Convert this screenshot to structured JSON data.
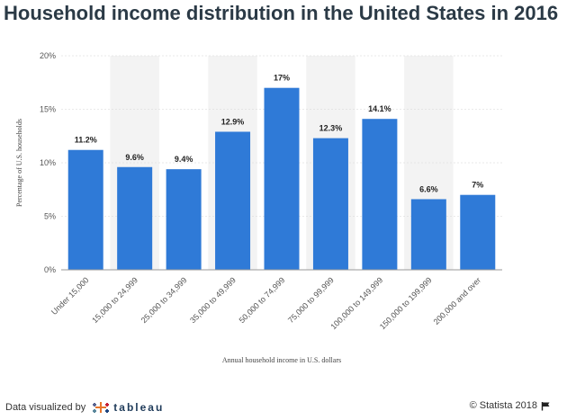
{
  "chart_data": {
    "type": "bar",
    "title": "Household income distribution in the United States in 2016",
    "xlabel": "Annual household income in U.S. dollars",
    "ylabel": "Percentage of U.S. households",
    "categories": [
      "Under 15,000",
      "15,000 to 24,999",
      "25,000 to 34,999",
      "35,000 to 49,999",
      "50,000 to 74,999",
      "75,000 to 99,999",
      "100,000 to 149,999",
      "150,000 to 199,999",
      "200,000 and over"
    ],
    "values": [
      11.2,
      9.6,
      9.4,
      12.9,
      17,
      12.3,
      14.1,
      6.6,
      7
    ],
    "data_labels": [
      "11.2%",
      "9.6%",
      "9.4%",
      "12.9%",
      "17%",
      "12.3%",
      "14.1%",
      "6.6%",
      "7%"
    ],
    "y_ticks": [
      0,
      5,
      10,
      15,
      20
    ],
    "y_tick_labels": [
      "0%",
      "5%",
      "10%",
      "15%",
      "20%"
    ],
    "ylim": [
      0,
      20
    ],
    "grid": "alternating column shading",
    "bar_color": "#2f7ad7",
    "band_color": "#f3f3f3"
  },
  "footer": {
    "source_prefix": "Data visualized by",
    "source_brand": "tableau",
    "copyright": "© Statista 2018"
  }
}
